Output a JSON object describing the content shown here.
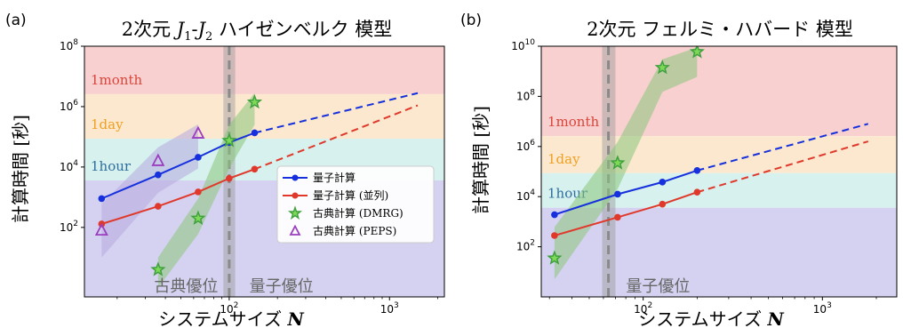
{
  "chart_data": [
    {
      "panel_label": "(a)",
      "type": "line",
      "title": "2次元 J1-J2 ハイゼンベルク 模型",
      "title_parts": {
        "prefix": "2次元 ",
        "j1": "J",
        "sub1": "1",
        "dash": "-",
        "j2": "J",
        "sub2": "2",
        "suffix": " ハイゼンベルク 模型"
      },
      "xlabel": "システムサイズ N",
      "xlabel_parts": {
        "text": "システムサイズ ",
        "var": "N"
      },
      "ylabel": "計算時間 [秒]",
      "xscale": "log",
      "yscale": "log",
      "xlim": [
        12.5,
        2200
      ],
      "ylim": [
        0.5,
        100000000.0
      ],
      "x_ticks": [
        {
          "value": 100,
          "base": "10",
          "exp": "2"
        },
        {
          "value": 1000,
          "base": "10",
          "exp": "3"
        }
      ],
      "y_ticks": [
        {
          "value": 100,
          "base": "10",
          "exp": "2"
        },
        {
          "value": 10000,
          "base": "10",
          "exp": "4"
        },
        {
          "value": 1000000,
          "base": "10",
          "exp": "6"
        },
        {
          "value": 100000000,
          "base": "10",
          "exp": "8"
        }
      ],
      "bands": [
        {
          "from": 2592000,
          "to": 100000000.0,
          "color": "#f8d0d0",
          "label": "1month",
          "label_color": "#d9453a"
        },
        {
          "from": 86400,
          "to": 2592000,
          "color": "#fbe8cf",
          "label": "1day",
          "label_color": "#f0a020"
        },
        {
          "from": 3600,
          "to": 86400,
          "color": "#d6f1ee",
          "label": "1hour",
          "label_color": "#2f6e9e"
        },
        {
          "from": 0.5,
          "to": 3600,
          "color": "#d4d2f0",
          "label": "",
          "label_color": ""
        }
      ],
      "crossover": {
        "x": 100,
        "band_from": 92,
        "band_to": 109
      },
      "region_labels": {
        "left": "古典優位",
        "right": "量子優位"
      },
      "series": [
        {
          "name": "量子計算",
          "color": "#1530dc",
          "marker": "dot",
          "x": [
            16,
            36,
            64,
            100,
            144
          ],
          "y": [
            900,
            5500,
            21000,
            65000,
            135000
          ],
          "extrapolation": {
            "x": [
              144,
              1500
            ],
            "y": [
              135000,
              2800000
            ]
          }
        },
        {
          "name": "量子計算 (並列)",
          "color": "#e0392b",
          "marker": "dot",
          "x": [
            16,
            36,
            64,
            100,
            144
          ],
          "y": [
            130,
            500,
            1500,
            4200,
            8500
          ],
          "extrapolation": {
            "x": [
              144,
              1500
            ],
            "y": [
              8500,
              1100000
            ]
          }
        },
        {
          "name": "古典計算 (DMRG)",
          "color": "#3ea03e",
          "marker": "star",
          "x": [
            36,
            64,
            100,
            144
          ],
          "y": [
            4,
            200,
            75000,
            1400000
          ],
          "band_upper": [
            [
              36,
              10
            ],
            [
              64,
              900
            ],
            [
              100,
              250000
            ],
            [
              144,
              2800000
            ]
          ],
          "band_lower": [
            [
              36,
              1
            ],
            [
              64,
              60
            ],
            [
              100,
              9000
            ],
            [
              144,
              250000
            ]
          ],
          "band_color": "#8ac57a"
        },
        {
          "name": "古典計算 (PEPS)",
          "color": "#9b3ec0",
          "marker": "triangle",
          "x": [
            16,
            36,
            64
          ],
          "y": [
            80,
            16000,
            130000
          ],
          "band_upper": [
            [
              16,
              600
            ],
            [
              36,
              45000
            ],
            [
              64,
              260000
            ]
          ],
          "band_lower": [
            [
              16,
              10
            ],
            [
              36,
              1400
            ],
            [
              64,
              9000
            ]
          ],
          "band_color": "#b7a8e0"
        }
      ],
      "legend": "center-right"
    },
    {
      "panel_label": "(b)",
      "type": "line",
      "title": "2次元 フェルミ・ハバード 模型",
      "xlabel": "システムサイズ N",
      "xlabel_parts": {
        "text": "システムサイズ ",
        "var": "N"
      },
      "ylabel": "計算時間 [秒]",
      "xscale": "log",
      "yscale": "log",
      "xlim": [
        27,
        2600
      ],
      "ylim": [
        1,
        10000000000.0
      ],
      "x_ticks": [
        {
          "value": 100,
          "base": "10",
          "exp": "2"
        },
        {
          "value": 1000,
          "base": "10",
          "exp": "3"
        }
      ],
      "y_ticks": [
        {
          "value": 100,
          "base": "10",
          "exp": "2"
        },
        {
          "value": 10000,
          "base": "10",
          "exp": "4"
        },
        {
          "value": 1000000,
          "base": "10",
          "exp": "6"
        },
        {
          "value": 100000000,
          "base": "10",
          "exp": "8"
        },
        {
          "value": 10000000000,
          "base": "10",
          "exp": "10"
        }
      ],
      "bands": [
        {
          "from": 2592000,
          "to": 10000000000.0,
          "color": "#f8d0d0",
          "label": "1month",
          "label_color": "#d9453a"
        },
        {
          "from": 86400,
          "to": 2592000,
          "color": "#fbe8cf",
          "label": "1day",
          "label_color": "#f0a020"
        },
        {
          "from": 3600,
          "to": 86400,
          "color": "#d6f1ee",
          "label": "1hour",
          "label_color": "#2f6e9e"
        },
        {
          "from": 1,
          "to": 3600,
          "color": "#d4d2f0",
          "label": "",
          "label_color": ""
        }
      ],
      "crossover": {
        "x": 64,
        "band_from": 59,
        "band_to": 70
      },
      "region_labels": {
        "left": "",
        "right": "量子優位"
      },
      "series": [
        {
          "name": "量子計算",
          "color": "#1530dc",
          "marker": "dot",
          "x": [
            32,
            72,
            128,
            200
          ],
          "y": [
            1900,
            12500,
            38000,
            110000
          ],
          "extrapolation": {
            "x": [
              200,
              1800
            ],
            "y": [
              110000,
              8000000
            ]
          }
        },
        {
          "name": "量子計算 (並列)",
          "color": "#e0392b",
          "marker": "dot",
          "x": [
            32,
            72,
            128,
            200
          ],
          "y": [
            280,
            1500,
            5000,
            15000
          ],
          "extrapolation": {
            "x": [
              200,
              1800
            ],
            "y": [
              15000,
              1600000
            ]
          }
        },
        {
          "name": "古典計算 (DMRG)",
          "color": "#3ea03e",
          "marker": "star",
          "x": [
            32,
            72,
            128,
            200
          ],
          "y": [
            35,
            220000,
            1400000000,
            6000000000
          ],
          "band_upper": [
            [
              32,
              600
            ],
            [
              72,
              1500000
            ],
            [
              128,
              3000000000
            ],
            [
              200,
              9000000000
            ]
          ],
          "band_lower": [
            [
              32,
              5
            ],
            [
              72,
              20000
            ],
            [
              128,
              150000000
            ],
            [
              200,
              600000000
            ]
          ],
          "band_color": "#8ac57a"
        }
      ]
    }
  ]
}
